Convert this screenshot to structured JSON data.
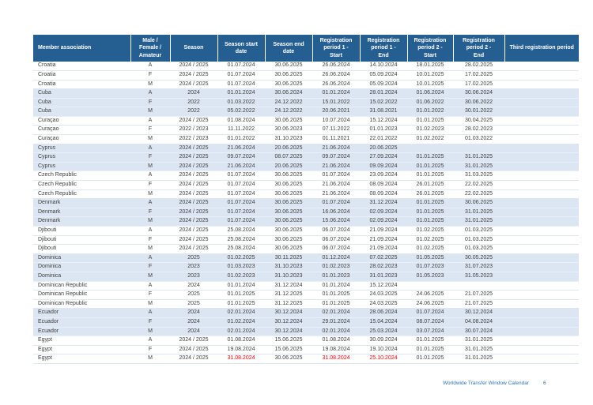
{
  "footer": {
    "title": "Worldwide Transfer Window Calendar",
    "page_number": "6"
  },
  "colors": {
    "header_bg": "#255E91",
    "stripe_bg": "#DCE6F2",
    "body_text": "#3F3F3F",
    "alert_text": "#FF0000",
    "footer_text": "#2E74B5"
  },
  "table": {
    "columns": [
      {
        "key": "association",
        "label": "Member association"
      },
      {
        "key": "category",
        "label": "Male /\nFemale /\nAmateur"
      },
      {
        "key": "season",
        "label": "Season"
      },
      {
        "key": "season_start",
        "label": "Season start\ndate"
      },
      {
        "key": "season_end",
        "label": "Season end\ndate"
      },
      {
        "key": "r1_start",
        "label": "Registration\nperiod 1 -\nStart"
      },
      {
        "key": "r1_end",
        "label": "Registration\nperiod 1 -\nEnd"
      },
      {
        "key": "r2_start",
        "label": "Registration\nperiod 2 -\nStart"
      },
      {
        "key": "r2_end",
        "label": "Registration\nperiod 2 -\nEnd"
      },
      {
        "key": "third",
        "label": "Third registration period"
      }
    ],
    "rows": [
      {
        "association": "Croatia",
        "category": "A",
        "season": "2024 / 2025",
        "season_start": "01.07.2024",
        "season_end": "30.06.2025",
        "r1_start": "26.06.2024",
        "r1_end": "14.10.2024",
        "r2_start": "18.01.2025",
        "r2_end": "28.02.2025",
        "third": ""
      },
      {
        "association": "Croatia",
        "category": "F",
        "season": "2024 / 2025",
        "season_start": "01.07.2024",
        "season_end": "30.06.2025",
        "r1_start": "26.06.2024",
        "r1_end": "05.09.2024",
        "r2_start": "10.01.2025",
        "r2_end": "17.02.2025",
        "third": ""
      },
      {
        "association": "Croatia",
        "category": "M",
        "season": "2024 / 2025",
        "season_start": "01.07.2024",
        "season_end": "30.06.2025",
        "r1_start": "26.06.2024",
        "r1_end": "05.09.2024",
        "r2_start": "10.01.2025",
        "r2_end": "17.02.2025",
        "third": ""
      },
      {
        "association": "Cuba",
        "category": "A",
        "season": "2024",
        "season_start": "01.01.2024",
        "season_end": "30.06.2024",
        "r1_start": "01.01.2024",
        "r1_end": "28.01.2024",
        "r2_start": "01.06.2024",
        "r2_end": "30.06.2024",
        "third": ""
      },
      {
        "association": "Cuba",
        "category": "F",
        "season": "2022",
        "season_start": "01.03.2022",
        "season_end": "24.12.2022",
        "r1_start": "15.01.2022",
        "r1_end": "15.02.2022",
        "r2_start": "01.06.2022",
        "r2_end": "30.06.2022",
        "third": ""
      },
      {
        "association": "Cuba",
        "category": "M",
        "season": "2022",
        "season_start": "05.02.2022",
        "season_end": "24.12.2022",
        "r1_start": "20.06.2021",
        "r1_end": "31.08.2021",
        "r2_start": "01.01.2022",
        "r2_end": "30.01.2022",
        "third": ""
      },
      {
        "association": "Curaçao",
        "category": "A",
        "season": "2024 / 2025",
        "season_start": "01.08.2024",
        "season_end": "30.06.2025",
        "r1_start": "10.07.2024",
        "r1_end": "15.12.2024",
        "r2_start": "01.01.2025",
        "r2_end": "30.04.2025",
        "third": ""
      },
      {
        "association": "Curaçao",
        "category": "F",
        "season": "2022 / 2023",
        "season_start": "11.11.2022",
        "season_end": "30.06.2023",
        "r1_start": "07.11.2022",
        "r1_end": "01.01.2023",
        "r2_start": "01.02.2023",
        "r2_end": "28.02.2023",
        "third": ""
      },
      {
        "association": "Curaçao",
        "category": "M",
        "season": "2022 / 2023",
        "season_start": "01.01.2022",
        "season_end": "31.10.2023",
        "r1_start": "01.11.2021",
        "r1_end": "22.01.2022",
        "r2_start": "01.02.2022",
        "r2_end": "01.03.2022",
        "third": ""
      },
      {
        "association": "Cyprus",
        "category": "A",
        "season": "2024 / 2025",
        "season_start": "21.06.2024",
        "season_end": "20.06.2025",
        "r1_start": "21.06.2024",
        "r1_end": "20.06.2025",
        "r2_start": "",
        "r2_end": "",
        "third": ""
      },
      {
        "association": "Cyprus",
        "category": "F",
        "season": "2024 / 2025",
        "season_start": "09.07.2024",
        "season_end": "08.07.2025",
        "r1_start": "09.07.2024",
        "r1_end": "27.09.2024",
        "r2_start": "01.01.2025",
        "r2_end": "31.01.2025",
        "third": ""
      },
      {
        "association": "Cyprus",
        "category": "M",
        "season": "2024 / 2025",
        "season_start": "21.06.2024",
        "season_end": "20.06.2025",
        "r1_start": "21.06.2024",
        "r1_end": "09.09.2024",
        "r2_start": "01.01.2025",
        "r2_end": "31.01.2025",
        "third": ""
      },
      {
        "association": "Czech Republic",
        "category": "A",
        "season": "2024 / 2025",
        "season_start": "01.07.2024",
        "season_end": "30.06.2025",
        "r1_start": "01.07.2024",
        "r1_end": "23.09.2024",
        "r2_start": "01.01.2025",
        "r2_end": "31.03.2025",
        "third": ""
      },
      {
        "association": "Czech Republic",
        "category": "F",
        "season": "2024 / 2025",
        "season_start": "01.07.2024",
        "season_end": "30.06.2025",
        "r1_start": "21.06.2024",
        "r1_end": "08.09.2024",
        "r2_start": "26.01.2025",
        "r2_end": "22.02.2025",
        "third": ""
      },
      {
        "association": "Czech Republic",
        "category": "M",
        "season": "2024 / 2025",
        "season_start": "01.07.2024",
        "season_end": "30.06.2025",
        "r1_start": "21.06.2024",
        "r1_end": "08.09.2024",
        "r2_start": "26.01.2025",
        "r2_end": "22.02.2025",
        "third": ""
      },
      {
        "association": "Denmark",
        "category": "A",
        "season": "2024 / 2025",
        "season_start": "01.07.2024",
        "season_end": "30.06.2025",
        "r1_start": "01.07.2024",
        "r1_end": "31.12.2024",
        "r2_start": "01.01.2025",
        "r2_end": "30.06.2025",
        "third": ""
      },
      {
        "association": "Denmark",
        "category": "F",
        "season": "2024 / 2025",
        "season_start": "01.07.2024",
        "season_end": "30.06.2025",
        "r1_start": "16.06.2024",
        "r1_end": "02.09.2024",
        "r2_start": "01.01.2025",
        "r2_end": "31.01.2025",
        "third": ""
      },
      {
        "association": "Denmark",
        "category": "M",
        "season": "2024 / 2025",
        "season_start": "01.07.2024",
        "season_end": "30.06.2025",
        "r1_start": "15.06.2024",
        "r1_end": "02.09.2024",
        "r2_start": "01.01.2025",
        "r2_end": "31.01.2025",
        "third": ""
      },
      {
        "association": "Djibouti",
        "category": "A",
        "season": "2024 / 2025",
        "season_start": "25.08.2024",
        "season_end": "30.06.2025",
        "r1_start": "06.07.2024",
        "r1_end": "21.09.2024",
        "r2_start": "01.02.2025",
        "r2_end": "01.03.2025",
        "third": ""
      },
      {
        "association": "Djibouti",
        "category": "F",
        "season": "2024 / 2025",
        "season_start": "25.08.2024",
        "season_end": "30.06.2025",
        "r1_start": "06.07.2024",
        "r1_end": "21.09.2024",
        "r2_start": "01.02.2025",
        "r2_end": "01.03.2025",
        "third": ""
      },
      {
        "association": "Djibouti",
        "category": "M",
        "season": "2024 / 2025",
        "season_start": "25.08.2024",
        "season_end": "30.06.2025",
        "r1_start": "06.07.2024",
        "r1_end": "21.09.2024",
        "r2_start": "01.02.2025",
        "r2_end": "01.03.2025",
        "third": ""
      },
      {
        "association": "Dominica",
        "category": "A",
        "season": "2025",
        "season_start": "01.02.2025",
        "season_end": "30.11.2025",
        "r1_start": "01.12.2024",
        "r1_end": "07.02.2025",
        "r2_start": "01.05.2025",
        "r2_end": "30.05.2025",
        "third": ""
      },
      {
        "association": "Dominica",
        "category": "F",
        "season": "2023",
        "season_start": "01.03.2023",
        "season_end": "31.10.2023",
        "r1_start": "01.02.2023",
        "r1_end": "28.02.2023",
        "r2_start": "01.07.2023",
        "r2_end": "31.07.2023",
        "third": ""
      },
      {
        "association": "Dominica",
        "category": "M",
        "season": "2023",
        "season_start": "01.02.2023",
        "season_end": "31.10.2023",
        "r1_start": "01.01.2023",
        "r1_end": "31.01.2023",
        "r2_start": "01.05.2023",
        "r2_end": "31.05.2023",
        "third": ""
      },
      {
        "association": "Dominican Republic",
        "category": "A",
        "season": "2024",
        "season_start": "01.01.2024",
        "season_end": "31.12.2024",
        "r1_start": "01.01.2024",
        "r1_end": "15.12.2024",
        "r2_start": "",
        "r2_end": "",
        "third": ""
      },
      {
        "association": "Dominican Republic",
        "category": "F",
        "season": "2025",
        "season_start": "01.01.2025",
        "season_end": "31.12.2025",
        "r1_start": "01.01.2025",
        "r1_end": "24.03.2025",
        "r2_start": "24.06.2025",
        "r2_end": "21.07.2025",
        "third": ""
      },
      {
        "association": "Dominican Republic",
        "category": "M",
        "season": "2025",
        "season_start": "01.01.2025",
        "season_end": "31.12.2025",
        "r1_start": "01.01.2025",
        "r1_end": "24.03.2025",
        "r2_start": "24.06.2025",
        "r2_end": "21.07.2025",
        "third": ""
      },
      {
        "association": "Ecuador",
        "category": "A",
        "season": "2024",
        "season_start": "02.01.2024",
        "season_end": "30.12.2024",
        "r1_start": "02.01.2024",
        "r1_end": "28.06.2024",
        "r2_start": "01.07.2024",
        "r2_end": "30.12.2024",
        "third": ""
      },
      {
        "association": "Ecuador",
        "category": "F",
        "season": "2024",
        "season_start": "01.02.2024",
        "season_end": "30.12.2024",
        "r1_start": "29.01.2024",
        "r1_end": "15.04.2024",
        "r2_start": "08.07.2024",
        "r2_end": "04.08.2024",
        "third": ""
      },
      {
        "association": "Ecuador",
        "category": "M",
        "season": "2024",
        "season_start": "02.01.2024",
        "season_end": "30.12.2024",
        "r1_start": "02.01.2024",
        "r1_end": "25.03.2024",
        "r2_start": "03.07.2024",
        "r2_end": "30.07.2024",
        "third": ""
      },
      {
        "association": "Egypt",
        "category": "A",
        "season": "2024 / 2025",
        "season_start": "01.08.2024",
        "season_end": "15.06.2025",
        "r1_start": "01.08.2024",
        "r1_end": "30.09.2024",
        "r2_start": "01.01.2025",
        "r2_end": "31.01.2025",
        "third": ""
      },
      {
        "association": "Egypt",
        "category": "F",
        "season": "2024 / 2025",
        "season_start": "19.08.2024",
        "season_end": "15.06.2025",
        "r1_start": "19.08.2024",
        "r1_end": "19.10.2024",
        "r2_start": "01.01.2025",
        "r2_end": "31.01.2025",
        "third": ""
      },
      {
        "association": "Egypt",
        "category": "M",
        "season": "2024 / 2025",
        "season_start": "31.08.2024",
        "season_end": "30.06.2025",
        "r1_start": "31.08.2024",
        "r1_end": "25.10.2024",
        "r2_start": "01.01.2025",
        "r2_end": "31.01.2025",
        "third": "",
        "red": [
          "season_start",
          "r1_start",
          "r1_end"
        ]
      }
    ]
  }
}
